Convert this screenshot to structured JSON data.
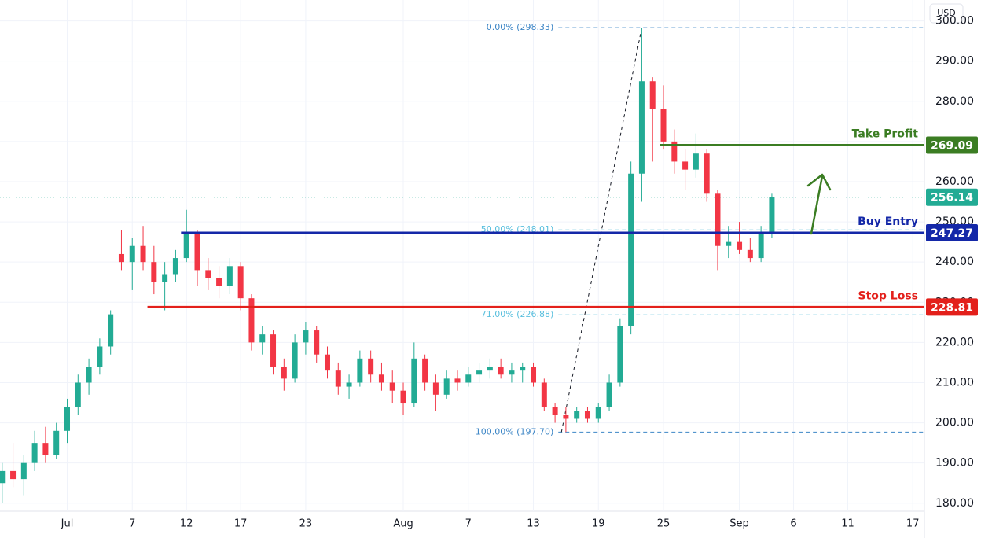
{
  "chart_data": {
    "type": "candlestick",
    "currency": "USD",
    "up_color": "#22ab94",
    "down_color": "#f23645",
    "grid": true,
    "xlim": [
      -6.2,
      79
    ],
    "ylim": [
      178,
      305.2
    ],
    "xticks": [
      {
        "value": 0,
        "label": "Jul"
      },
      {
        "value": 6,
        "label": "7"
      },
      {
        "value": 11,
        "label": "12"
      },
      {
        "value": 16,
        "label": "17"
      },
      {
        "value": 22,
        "label": "23"
      },
      {
        "value": 31,
        "label": "Aug"
      },
      {
        "value": 37,
        "label": "7"
      },
      {
        "value": 43,
        "label": "13"
      },
      {
        "value": 49,
        "label": "19"
      },
      {
        "value": 55,
        "label": "25"
      },
      {
        "value": 62,
        "label": "Sep"
      },
      {
        "value": 67,
        "label": "6"
      },
      {
        "value": 72,
        "label": "11"
      },
      {
        "value": 78,
        "label": "17"
      }
    ],
    "yticks": [
      {
        "value": 180,
        "label": "180.00"
      },
      {
        "value": 190,
        "label": "190.00"
      },
      {
        "value": 200,
        "label": "200.00"
      },
      {
        "value": 210,
        "label": "210.00"
      },
      {
        "value": 220,
        "label": "220.00"
      },
      {
        "value": 230,
        "label": "230.00"
      },
      {
        "value": 240,
        "label": "240.00"
      },
      {
        "value": 250,
        "label": "250.00"
      },
      {
        "value": 260,
        "label": "260.00"
      },
      {
        "value": 270,
        "label": "270.00"
      },
      {
        "value": 280,
        "label": "280.00"
      },
      {
        "value": 290,
        "label": "290.00"
      },
      {
        "value": 300,
        "label": "300.00"
      }
    ],
    "candles": {
      "x": [
        -6,
        -5,
        -4,
        -3,
        -2,
        -1,
        0,
        1,
        2,
        3,
        4,
        5,
        6,
        7,
        8,
        9,
        10,
        11,
        12,
        13,
        14,
        15,
        16,
        17,
        18,
        19,
        20,
        21,
        22,
        23,
        24,
        25,
        26,
        27,
        28,
        29,
        30,
        31,
        32,
        33,
        34,
        35,
        36,
        37,
        38,
        39,
        40,
        41,
        42,
        43,
        44,
        45,
        46,
        47,
        48,
        49,
        50,
        51,
        52,
        53,
        54,
        55,
        56,
        57,
        58,
        59,
        60,
        61,
        62,
        63,
        64,
        65
      ],
      "open": [
        185,
        188,
        186,
        190,
        195,
        192,
        198,
        204,
        210,
        214,
        219,
        242,
        240,
        244,
        240,
        235,
        237,
        241,
        247,
        238,
        236,
        234,
        239,
        231,
        220,
        222,
        214,
        211,
        220,
        223,
        217,
        213,
        209,
        210,
        216,
        212,
        210,
        208,
        205,
        216,
        210,
        207,
        211,
        210,
        212,
        213,
        214,
        212,
        213,
        214,
        210,
        204,
        202,
        201,
        203,
        201,
        204,
        210,
        224,
        262,
        285,
        278,
        270,
        265,
        263,
        267,
        257,
        244,
        245,
        243,
        241,
        247
      ],
      "high": [
        190,
        195,
        192,
        198,
        199,
        200,
        206,
        212,
        216,
        221,
        228,
        248,
        246,
        249,
        244,
        240,
        243,
        253,
        248,
        241,
        239,
        241,
        240,
        232,
        224,
        223,
        216,
        222,
        225,
        224,
        219,
        215,
        212,
        218,
        218,
        215,
        213,
        210,
        220,
        217,
        212,
        213,
        213,
        214,
        215,
        216,
        216,
        215,
        215,
        215,
        211,
        205,
        204,
        204,
        204,
        205,
        212,
        226,
        265,
        298.33,
        286,
        284,
        273,
        268,
        272,
        268,
        258,
        249,
        250,
        246,
        249,
        257
      ],
      "low": [
        180,
        184,
        182,
        188,
        190,
        191,
        195,
        202,
        207,
        212,
        217,
        238,
        233,
        238,
        232,
        228,
        235,
        240,
        234,
        233,
        231,
        232,
        228,
        218,
        217,
        212,
        208,
        210,
        217,
        215,
        211,
        207,
        206,
        209,
        210,
        208,
        205,
        202,
        204,
        208,
        203,
        206,
        208,
        209,
        210,
        211,
        211,
        210,
        210,
        209,
        203,
        200,
        197.7,
        200,
        200,
        200,
        203,
        209,
        222,
        255,
        265,
        268,
        262,
        258,
        261,
        255,
        238,
        241,
        242,
        240,
        240,
        246
      ],
      "close": [
        188,
        186,
        190,
        195,
        192,
        198,
        204,
        210,
        214,
        219,
        227,
        240,
        244,
        240,
        235,
        237,
        241,
        247,
        238,
        236,
        234,
        239,
        231,
        220,
        222,
        214,
        211,
        220,
        223,
        217,
        213,
        209,
        210,
        216,
        212,
        210,
        208,
        205,
        216,
        210,
        207,
        211,
        210,
        212,
        213,
        214,
        212,
        213,
        214,
        210,
        204,
        202,
        201,
        203,
        201,
        204,
        210,
        224,
        262,
        285,
        278,
        270,
        265,
        263,
        267,
        257,
        244,
        245,
        243,
        241,
        247,
        256.14
      ]
    },
    "last_price": 256.14,
    "last_price_color": "#22ab94",
    "levels": [
      {
        "name": "Take Profit",
        "value": 269.09,
        "color": "#3b7d23",
        "from": 54.7
      },
      {
        "name": "Buy Entry",
        "value": 247.27,
        "color": "#1428a8",
        "from": 10.5
      },
      {
        "name": "Stop Loss",
        "value": 228.81,
        "color": "#e3201b",
        "from": 7.4
      }
    ],
    "fib_from": 45.3,
    "fib": [
      {
        "label": "0.00% (298.33)",
        "value": 298.33,
        "color": "#3d86c6"
      },
      {
        "label": "50.00% (248.01)",
        "value": 248.01,
        "color": "#5bc0de"
      },
      {
        "label": "71.00% (226.88)",
        "value": 226.88,
        "color": "#5bc0de"
      },
      {
        "label": "100.00% (197.70)",
        "value": 197.7,
        "color": "#3d86c6"
      }
    ]
  }
}
